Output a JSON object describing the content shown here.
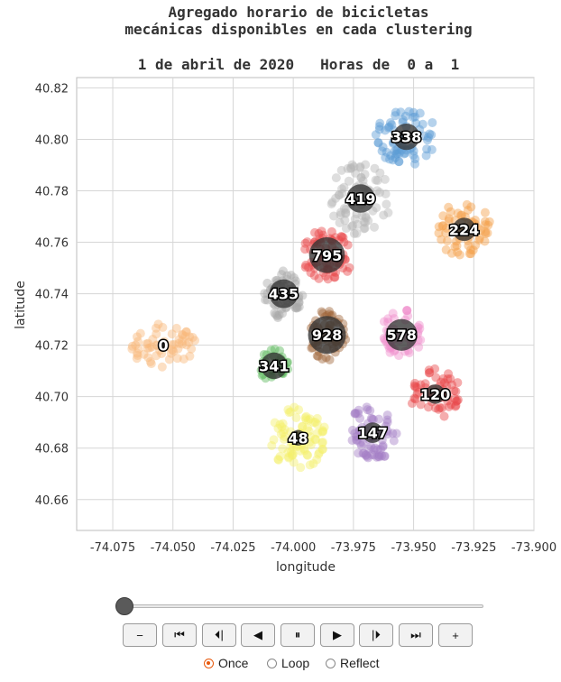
{
  "chart_data": {
    "type": "scatter",
    "title_line1": "Agregado horario de bicicletas",
    "title_line2": "mecánicas disponibles en cada clustering",
    "subtitle": "1 de abril de 2020   Horas de  0 a  1",
    "xlabel": "longitude",
    "ylabel": "latitude",
    "xlim": [
      -74.09,
      -73.9
    ],
    "ylim": [
      40.648,
      40.824
    ],
    "xticks": [
      "-74.075",
      "-74.050",
      "-74.025",
      "-74.000",
      "-73.975",
      "-73.950",
      "-73.925",
      "-73.900"
    ],
    "xtick_values": [
      -74.075,
      -74.05,
      -74.025,
      -74.0,
      -73.975,
      -73.95,
      -73.925,
      -73.9
    ],
    "yticks": [
      "40.82",
      "40.80",
      "40.78",
      "40.76",
      "40.74",
      "40.72",
      "40.70",
      "40.68",
      "40.66"
    ],
    "ytick_values": [
      40.82,
      40.8,
      40.78,
      40.76,
      40.74,
      40.72,
      40.7,
      40.68,
      40.66
    ],
    "grid": true,
    "clusters": [
      {
        "label": "338",
        "value": 338,
        "color": "#5b9bd5",
        "center": [
          -73.953,
          40.801
        ],
        "spread": [
          0.013,
          0.011
        ],
        "n": 70
      },
      {
        "label": "419",
        "value": 419,
        "color": "#b5b5b5",
        "center": [
          -73.972,
          40.777
        ],
        "spread": [
          0.013,
          0.014
        ],
        "n": 75
      },
      {
        "label": "224",
        "value": 224,
        "color": "#f5a04a",
        "center": [
          -73.929,
          40.765
        ],
        "spread": [
          0.011,
          0.011
        ],
        "n": 65
      },
      {
        "label": "795",
        "value": 795,
        "color": "#e8474a",
        "center": [
          -73.986,
          40.755
        ],
        "spread": [
          0.011,
          0.01
        ],
        "n": 75
      },
      {
        "label": "435",
        "value": 435,
        "color": "#a8a8a8",
        "center": [
          -74.004,
          40.74
        ],
        "spread": [
          0.008,
          0.01
        ],
        "n": 55
      },
      {
        "label": "0",
        "value": 0,
        "color": "#f9b97a",
        "center": [
          -74.054,
          40.72
        ],
        "spread": [
          0.014,
          0.009
        ],
        "n": 60
      },
      {
        "label": "928",
        "value": 928,
        "color": "#a0673a",
        "center": [
          -73.986,
          40.724
        ],
        "spread": [
          0.008,
          0.01
        ],
        "n": 60
      },
      {
        "label": "578",
        "value": 578,
        "color": "#f08fcc",
        "center": [
          -73.955,
          40.724
        ],
        "spread": [
          0.009,
          0.01
        ],
        "n": 45
      },
      {
        "label": "341",
        "value": 341,
        "color": "#5bb85b",
        "center": [
          -74.008,
          40.712
        ],
        "spread": [
          0.006,
          0.007
        ],
        "n": 35
      },
      {
        "label": "120",
        "value": 120,
        "color": "#e8474a",
        "center": [
          -73.941,
          40.701
        ],
        "spread": [
          0.011,
          0.01
        ],
        "n": 55
      },
      {
        "label": "48",
        "value": 48,
        "color": "#f4f06a",
        "center": [
          -73.998,
          40.684
        ],
        "spread": [
          0.012,
          0.012
        ],
        "n": 85
      },
      {
        "label": "147",
        "value": 147,
        "color": "#a57fc6",
        "center": [
          -73.967,
          40.686
        ],
        "spread": [
          0.011,
          0.011
        ],
        "n": 70
      }
    ]
  },
  "player": {
    "slider_position": 0,
    "buttons": [
      {
        "name": "minus-button",
        "glyph": "−"
      },
      {
        "name": "first-frame-button",
        "glyph": "⏮"
      },
      {
        "name": "step-back-button",
        "glyph": "⏴︎|"
      },
      {
        "name": "play-reverse-button",
        "glyph": "◀"
      },
      {
        "name": "pause-button",
        "glyph": "⏸"
      },
      {
        "name": "play-button",
        "glyph": "▶"
      },
      {
        "name": "step-forward-button",
        "glyph": "|⏵︎"
      },
      {
        "name": "last-frame-button",
        "glyph": "⏭"
      },
      {
        "name": "plus-button",
        "glyph": "+"
      }
    ],
    "modes": [
      {
        "label": "Once",
        "selected": true
      },
      {
        "label": "Loop",
        "selected": false
      },
      {
        "label": "Reflect",
        "selected": false
      }
    ]
  }
}
